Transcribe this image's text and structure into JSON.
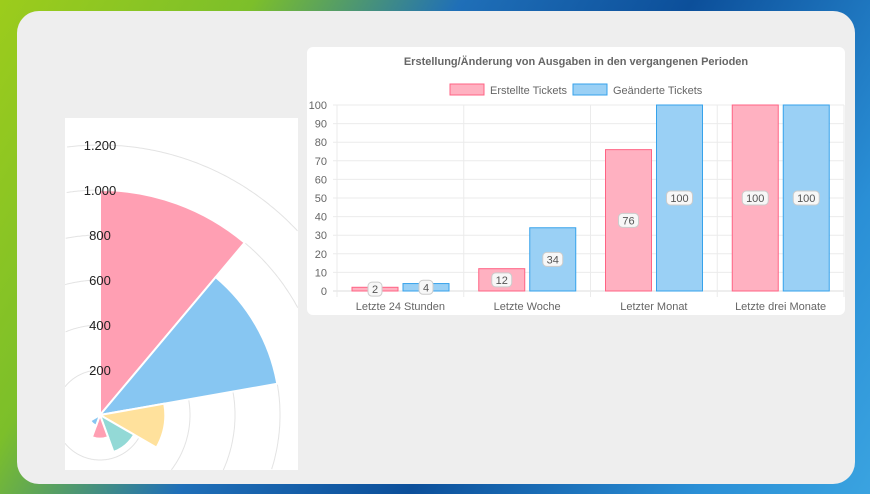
{
  "chart_data": [
    {
      "type": "polarArea",
      "tick_labels": [
        "200",
        "400",
        "600",
        "800",
        "1.000",
        "1.200"
      ],
      "ticks": [
        200,
        400,
        600,
        800,
        1000,
        1200
      ],
      "rmax": 1200,
      "values": [
        1000,
        800,
        290,
        175,
        105,
        50,
        0,
        0,
        0
      ],
      "colors": [
        "#ff9fb3",
        "#87c6f2",
        "#ffe19c",
        "#93d9d6",
        "#ff9fb3",
        "#87c6f2",
        "#ffe19c",
        "#93d9d6",
        "#ff9fb3"
      ],
      "grid": true
    },
    {
      "type": "bar",
      "title": "Erstellung/Änderung von Ausgaben in den vergangenen Perioden",
      "categories": [
        "Letzte 24 Stunden",
        "Letzte Woche",
        "Letzter Monat",
        "Letzte drei Monate"
      ],
      "series": [
        {
          "name": "Erstellte Tickets",
          "values": [
            2,
            12,
            76,
            100
          ],
          "fill": "#ffb1c1",
          "stroke": "#ff6384"
        },
        {
          "name": "Geänderte Tickets",
          "values": [
            4,
            34,
            100,
            100
          ],
          "fill": "#9ad0f5",
          "stroke": "#36a2eb"
        }
      ],
      "data_labels": [
        [
          "2",
          "12",
          "76",
          "100"
        ],
        [
          "4",
          "34",
          "100",
          "100"
        ]
      ],
      "yticks": [
        "0",
        "10",
        "20",
        "30",
        "40",
        "50",
        "60",
        "70",
        "80",
        "90",
        "100"
      ],
      "ylim": [
        0,
        100
      ],
      "legend": "top",
      "grid": true
    }
  ]
}
